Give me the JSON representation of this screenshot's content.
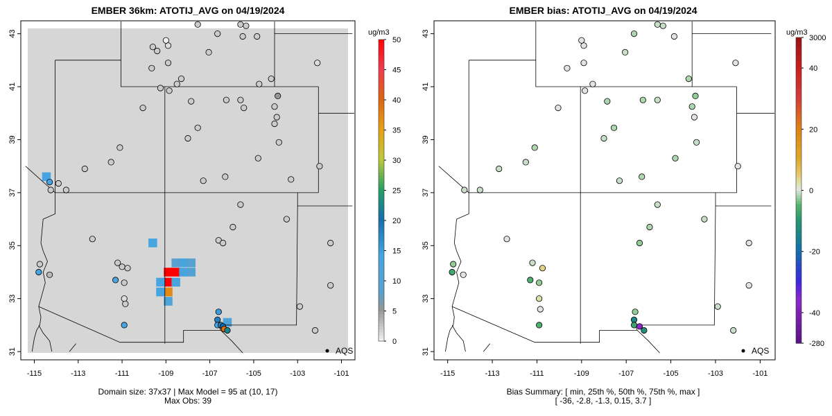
{
  "chart_data": [
    {
      "type": "heatmap",
      "title": "EMBER 36km: ATOTIJ_AVG on 04/19/2024",
      "colorbar_unit": "ug/m3",
      "colorbar_ticks": [
        "0",
        "5",
        "10",
        "15",
        "20",
        "25",
        "30",
        "35",
        "40",
        "45",
        "50"
      ],
      "colorbar_range": [
        0,
        50
      ],
      "x_ticks": [
        "-115",
        "-113",
        "-111",
        "-109",
        "-107",
        "-105",
        "-103",
        "-101"
      ],
      "y_ticks": [
        "31",
        "33",
        "35",
        "37",
        "39",
        "41",
        "43"
      ],
      "xlim": [
        -115.3,
        -100.7
      ],
      "ylim": [
        30.95,
        43.2
      ],
      "legend": {
        "label": "AQS",
        "position": "bottom-right"
      },
      "caption_line1": "Domain size: 37x37 | Max Model = 95 at (10, 17)",
      "caption_line2": "Max Obs: 39",
      "background_value": 2,
      "cells": [
        {
          "lon": -108.9,
          "lat": 34.0,
          "value": 50
        },
        {
          "lon": -108.55,
          "lat": 34.0,
          "value": 50
        },
        {
          "lon": -108.9,
          "lat": 33.62,
          "value": 50
        },
        {
          "lon": -108.9,
          "lat": 33.25,
          "value": 37
        },
        {
          "lon": -109.25,
          "lat": 33.62,
          "value": 14
        },
        {
          "lon": -109.25,
          "lat": 33.25,
          "value": 14
        },
        {
          "lon": -108.55,
          "lat": 33.62,
          "value": 13
        },
        {
          "lon": -108.2,
          "lat": 34.0,
          "value": 13
        },
        {
          "lon": -108.2,
          "lat": 34.35,
          "value": 13
        },
        {
          "lon": -108.55,
          "lat": 34.35,
          "value": 9
        },
        {
          "lon": -107.85,
          "lat": 34.35,
          "value": 9
        },
        {
          "lon": -107.85,
          "lat": 34.0,
          "value": 10
        },
        {
          "lon": -108.9,
          "lat": 32.9,
          "value": 11
        },
        {
          "lon": -109.6,
          "lat": 35.1,
          "value": 14
        },
        {
          "lon": -114.45,
          "lat": 37.6,
          "value": 14
        },
        {
          "lon": -106.2,
          "lat": 32.1,
          "value": 12
        }
      ],
      "points": [
        {
          "lon": -108.9,
          "lat": 42.55,
          "obs": 1
        },
        {
          "lon": -109.0,
          "lat": 42.75,
          "obs": 0
        },
        {
          "lon": -109.65,
          "lat": 41.7,
          "obs": 2
        },
        {
          "lon": -108.9,
          "lat": 41.9,
          "obs": 2
        },
        {
          "lon": -108.5,
          "lat": 41.1,
          "obs": 2
        },
        {
          "lon": -108.85,
          "lat": 40.85,
          "obs": 2
        },
        {
          "lon": -109.25,
          "lat": 40.95,
          "obs": 2
        },
        {
          "lon": -108.3,
          "lat": 41.3,
          "obs": 2
        },
        {
          "lon": -107.05,
          "lat": 42.3,
          "obs": 2
        },
        {
          "lon": -107.55,
          "lat": 43.35,
          "obs": 2
        },
        {
          "lon": -106.65,
          "lat": 43.0,
          "obs": 2
        },
        {
          "lon": -105.6,
          "lat": 43.35,
          "obs": 2
        },
        {
          "lon": -105.35,
          "lat": 43.3,
          "obs": 2
        },
        {
          "lon": -104.85,
          "lat": 42.9,
          "obs": 2
        },
        {
          "lon": -102.1,
          "lat": 41.9,
          "obs": 1
        },
        {
          "lon": -104.75,
          "lat": 41.1,
          "obs": 2
        },
        {
          "lon": -104.2,
          "lat": 41.3,
          "obs": 2
        },
        {
          "lon": -103.9,
          "lat": 40.65,
          "obs": 5
        },
        {
          "lon": -104.05,
          "lat": 40.25,
          "obs": 2
        },
        {
          "lon": -103.95,
          "lat": 39.85,
          "obs": 2
        },
        {
          "lon": -104.05,
          "lat": 39.6,
          "obs": 2
        },
        {
          "lon": -103.85,
          "lat": 38.9,
          "obs": 2
        },
        {
          "lon": -104.8,
          "lat": 38.3,
          "obs": 2
        },
        {
          "lon": -106.3,
          "lat": 37.6,
          "obs": 2
        },
        {
          "lon": -107.3,
          "lat": 37.45,
          "obs": 2
        },
        {
          "lon": -106.25,
          "lat": 40.5,
          "obs": 2
        },
        {
          "lon": -105.45,
          "lat": 40.2,
          "obs": 2
        },
        {
          "lon": -105.6,
          "lat": 40.5,
          "obs": 2
        },
        {
          "lon": -107.85,
          "lat": 40.45,
          "obs": 2
        },
        {
          "lon": -107.55,
          "lat": 39.45,
          "obs": 2
        },
        {
          "lon": -108.0,
          "lat": 39.05,
          "obs": 2
        },
        {
          "lon": -111.1,
          "lat": 38.7,
          "obs": 2
        },
        {
          "lon": -111.5,
          "lat": 38.15,
          "obs": 2
        },
        {
          "lon": -112.7,
          "lat": 37.9,
          "obs": 2
        },
        {
          "lon": -113.55,
          "lat": 37.1,
          "obs": 2
        },
        {
          "lon": -114.25,
          "lat": 37.1,
          "obs": 2
        },
        {
          "lon": -113.9,
          "lat": 37.35,
          "obs": 2
        },
        {
          "lon": -114.3,
          "lat": 37.4,
          "obs": 14
        },
        {
          "lon": -110.05,
          "lat": 40.2,
          "obs": 2
        },
        {
          "lon": -109.6,
          "lat": 42.5,
          "obs": 2
        },
        {
          "lon": -102.0,
          "lat": 38.0,
          "obs": 2
        },
        {
          "lon": -103.3,
          "lat": 37.5,
          "obs": 2
        },
        {
          "lon": -103.5,
          "lat": 36.0,
          "obs": 2
        },
        {
          "lon": -105.6,
          "lat": 36.55,
          "obs": 2
        },
        {
          "lon": -105.95,
          "lat": 35.7,
          "obs": 2
        },
        {
          "lon": -106.6,
          "lat": 35.2,
          "obs": 2
        },
        {
          "lon": -106.4,
          "lat": 35.1,
          "obs": 2
        },
        {
          "lon": -101.5,
          "lat": 35.1,
          "obs": 2
        },
        {
          "lon": -101.5,
          "lat": 33.5,
          "obs": 2
        },
        {
          "lon": -102.9,
          "lat": 32.7,
          "obs": 2
        },
        {
          "lon": -102.2,
          "lat": 31.8,
          "obs": 2
        },
        {
          "lon": -106.6,
          "lat": 32.5,
          "obs": 15
        },
        {
          "lon": -106.65,
          "lat": 32.2,
          "obs": 18
        },
        {
          "lon": -106.65,
          "lat": 32.0,
          "obs": 14
        },
        {
          "lon": -106.5,
          "lat": 32.0,
          "obs": 18
        },
        {
          "lon": -106.4,
          "lat": 31.95,
          "obs": 20
        },
        {
          "lon": -106.35,
          "lat": 31.85,
          "obs": 39
        },
        {
          "lon": -106.2,
          "lat": 31.8,
          "obs": 22
        },
        {
          "lon": -111.2,
          "lat": 34.35,
          "obs": 2
        },
        {
          "lon": -111.0,
          "lat": 34.2,
          "obs": 2
        },
        {
          "lon": -110.75,
          "lat": 34.15,
          "obs": 2
        },
        {
          "lon": -111.3,
          "lat": 33.7,
          "obs": 12
        },
        {
          "lon": -110.9,
          "lat": 33.6,
          "obs": 2
        },
        {
          "lon": -110.9,
          "lat": 33.0,
          "obs": 1
        },
        {
          "lon": -110.85,
          "lat": 32.8,
          "obs": 2
        },
        {
          "lon": -110.9,
          "lat": 32.0,
          "obs": 14
        },
        {
          "lon": -114.75,
          "lat": 34.3,
          "obs": 2
        },
        {
          "lon": -114.8,
          "lat": 34.0,
          "obs": 14
        },
        {
          "lon": -114.3,
          "lat": 33.9,
          "obs": 3
        },
        {
          "lon": -112.35,
          "lat": 35.25,
          "obs": 2
        },
        {
          "lon": -109.4,
          "lat": 42.35,
          "obs": 2
        },
        {
          "lon": -105.5,
          "lat": 42.9,
          "obs": 2
        }
      ]
    },
    {
      "type": "scatter",
      "title": "EMBER bias: ATOTIJ_AVG on 04/19/2024",
      "colorbar_unit": "ug/m3",
      "colorbar_ticks": [
        "-280",
        "-40",
        "-20",
        "0",
        "20",
        "40",
        "3000"
      ],
      "x_ticks": [
        "-115",
        "-113",
        "-111",
        "-109",
        "-107",
        "-105",
        "-103",
        "-101"
      ],
      "y_ticks": [
        "31",
        "33",
        "35",
        "37",
        "39",
        "41",
        "43"
      ],
      "xlim": [
        -115.3,
        -100.7
      ],
      "ylim": [
        30.95,
        43.2
      ],
      "legend": {
        "label": "AQS",
        "position": "bottom-right"
      },
      "caption_line1": "Bias Summary: [ min, 25th %, 50th %, 75th %, max ]",
      "caption_line2": "[ -36,   -2.8,   -1.3,   0.15,   3.7 ]",
      "bias_summary": {
        "min": -36,
        "p25": -2.8,
        "p50": -1.3,
        "p75": 0.15,
        "max": 3.7
      },
      "points": [
        {
          "lon": -108.9,
          "lat": 42.55,
          "bias": 0
        },
        {
          "lon": -109.65,
          "lat": 41.7,
          "bias": 0
        },
        {
          "lon": -108.9,
          "lat": 41.9,
          "bias": 0
        },
        {
          "lon": -108.5,
          "lat": 41.1,
          "bias": 0
        },
        {
          "lon": -108.85,
          "lat": 40.85,
          "bias": 0
        },
        {
          "lon": -107.05,
          "lat": 42.3,
          "bias": -1
        },
        {
          "lon": -106.65,
          "lat": 43.0,
          "bias": -2
        },
        {
          "lon": -105.6,
          "lat": 43.35,
          "bias": -1
        },
        {
          "lon": -104.85,
          "lat": 42.9,
          "bias": 0
        },
        {
          "lon": -104.2,
          "lat": 41.3,
          "bias": -2
        },
        {
          "lon": -103.9,
          "lat": 40.65,
          "bias": -3
        },
        {
          "lon": -104.05,
          "lat": 40.25,
          "bias": -2
        },
        {
          "lon": -103.95,
          "lat": 39.85,
          "bias": 0
        },
        {
          "lon": -103.85,
          "lat": 38.9,
          "bias": -1
        },
        {
          "lon": -104.8,
          "lat": 38.3,
          "bias": -2
        },
        {
          "lon": -106.3,
          "lat": 37.6,
          "bias": -2
        },
        {
          "lon": -107.3,
          "lat": 37.45,
          "bias": -1
        },
        {
          "lon": -107.85,
          "lat": 40.45,
          "bias": -2
        },
        {
          "lon": -105.6,
          "lat": 40.5,
          "bias": -1
        },
        {
          "lon": -106.25,
          "lat": 40.5,
          "bias": -2
        },
        {
          "lon": -107.55,
          "lat": 39.45,
          "bias": -2
        },
        {
          "lon": -108.0,
          "lat": 39.05,
          "bias": -1
        },
        {
          "lon": -111.1,
          "lat": 38.7,
          "bias": -2
        },
        {
          "lon": -111.5,
          "lat": 38.15,
          "bias": -1
        },
        {
          "lon": -112.7,
          "lat": 37.9,
          "bias": -1
        },
        {
          "lon": -114.25,
          "lat": 37.1,
          "bias": -1
        },
        {
          "lon": -113.55,
          "lat": 37.1,
          "bias": -1
        },
        {
          "lon": -103.5,
          "lat": 36.0,
          "bias": -1
        },
        {
          "lon": -105.6,
          "lat": 36.55,
          "bias": -1
        },
        {
          "lon": -105.95,
          "lat": 35.7,
          "bias": -2
        },
        {
          "lon": -106.4,
          "lat": 35.1,
          "bias": -3
        },
        {
          "lon": -101.5,
          "lat": 35.1,
          "bias": 0
        },
        {
          "lon": -101.5,
          "lat": 33.5,
          "bias": 0
        },
        {
          "lon": -102.9,
          "lat": 32.7,
          "bias": -1
        },
        {
          "lon": -102.2,
          "lat": 31.8,
          "bias": -1
        },
        {
          "lon": -106.6,
          "lat": 32.5,
          "bias": -3
        },
        {
          "lon": -106.65,
          "lat": 32.2,
          "bias": -14
        },
        {
          "lon": -106.65,
          "lat": 32.0,
          "bias": -8
        },
        {
          "lon": -106.4,
          "lat": 31.95,
          "bias": -36
        },
        {
          "lon": -106.2,
          "lat": 31.8,
          "bias": -12
        },
        {
          "lon": -111.2,
          "lat": 34.35,
          "bias": -1
        },
        {
          "lon": -110.75,
          "lat": 34.15,
          "bias": 3.7
        },
        {
          "lon": -111.3,
          "lat": 33.7,
          "bias": -6
        },
        {
          "lon": -110.9,
          "lat": 33.6,
          "bias": -3
        },
        {
          "lon": -110.9,
          "lat": 33.0,
          "bias": 2
        },
        {
          "lon": -110.85,
          "lat": 32.6,
          "bias": 0
        },
        {
          "lon": -110.9,
          "lat": 32.0,
          "bias": -6
        },
        {
          "lon": -114.75,
          "lat": 34.3,
          "bias": -3
        },
        {
          "lon": -114.8,
          "lat": 34.0,
          "bias": -7
        },
        {
          "lon": -114.3,
          "lat": 33.9,
          "bias": 0
        },
        {
          "lon": -112.35,
          "lat": 35.25,
          "bias": 0
        },
        {
          "lon": -102.1,
          "lat": 41.9,
          "bias": 0
        },
        {
          "lon": -102.0,
          "lat": 38.0,
          "bias": 0
        },
        {
          "lon": -110.05,
          "lat": 40.2,
          "bias": 0
        },
        {
          "lon": -109.0,
          "lat": 42.75,
          "bias": 0
        },
        {
          "lon": -105.35,
          "lat": 43.3,
          "bias": -1
        }
      ]
    }
  ]
}
